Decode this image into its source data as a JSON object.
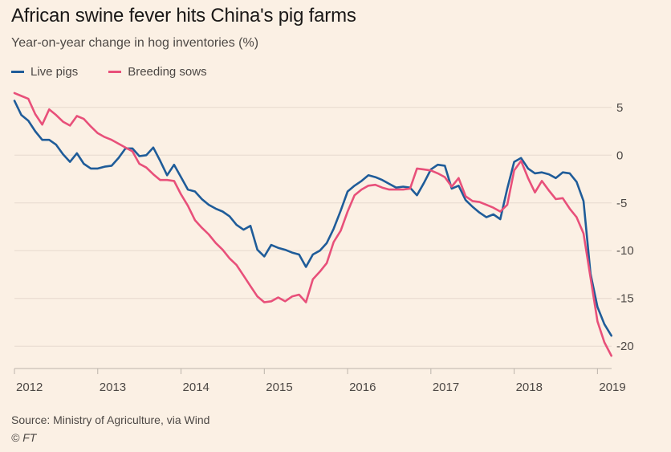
{
  "chart_data": {
    "type": "line",
    "title": "African swine fever hits China's pig farms",
    "subtitle": "Year-on-year change in hog inventories (%)",
    "xlabel": "",
    "ylabel": "",
    "x": [
      2012.0,
      2012.083,
      2012.167,
      2012.25,
      2012.333,
      2012.417,
      2012.5,
      2012.583,
      2012.667,
      2012.75,
      2012.833,
      2012.917,
      2013.0,
      2013.083,
      2013.167,
      2013.25,
      2013.333,
      2013.417,
      2013.5,
      2013.583,
      2013.667,
      2013.75,
      2013.833,
      2013.917,
      2014.0,
      2014.083,
      2014.167,
      2014.25,
      2014.333,
      2014.417,
      2014.5,
      2014.583,
      2014.667,
      2014.75,
      2014.833,
      2014.917,
      2015.0,
      2015.083,
      2015.167,
      2015.25,
      2015.333,
      2015.417,
      2015.5,
      2015.583,
      2015.667,
      2015.75,
      2015.833,
      2015.917,
      2016.0,
      2016.083,
      2016.167,
      2016.25,
      2016.333,
      2016.417,
      2016.5,
      2016.583,
      2016.667,
      2016.75,
      2016.833,
      2016.917,
      2017.0,
      2017.083,
      2017.167,
      2017.25,
      2017.333,
      2017.417,
      2017.5,
      2017.583,
      2017.667,
      2017.75,
      2017.833,
      2017.917,
      2018.0,
      2018.083,
      2018.167,
      2018.25,
      2018.333,
      2018.417,
      2018.5,
      2018.583,
      2018.667,
      2018.75,
      2018.833,
      2018.917,
      2019.0,
      2019.083,
      2019.167
    ],
    "series": [
      {
        "name": "Live pigs",
        "color": "#1f5c99",
        "values": [
          5.7,
          4.2,
          3.6,
          2.5,
          1.6,
          1.6,
          1.1,
          0.1,
          -0.7,
          0.2,
          -0.9,
          -1.4,
          -1.4,
          -1.2,
          -1.1,
          -0.3,
          0.7,
          0.7,
          -0.1,
          0.0,
          0.8,
          -0.6,
          -2.1,
          -1.0,
          -2.3,
          -3.6,
          -3.8,
          -4.6,
          -5.2,
          -5.6,
          -5.9,
          -6.4,
          -7.3,
          -7.8,
          -7.4,
          -9.9,
          -10.6,
          -9.4,
          -9.7,
          -9.9,
          -10.2,
          -10.4,
          -11.7,
          -10.4,
          -10.0,
          -9.2,
          -7.7,
          -5.8,
          -3.8,
          -3.2,
          -2.7,
          -2.1,
          -2.3,
          -2.6,
          -3.0,
          -3.4,
          -3.3,
          -3.4,
          -4.2,
          -2.9,
          -1.5,
          -1.0,
          -1.1,
          -3.5,
          -3.2,
          -4.7,
          -5.4,
          -6.0,
          -6.5,
          -6.2,
          -6.7,
          -3.5,
          -0.7,
          -0.3,
          -1.4,
          -1.9,
          -1.8,
          -2.0,
          -2.4,
          -1.8,
          -1.9,
          -2.8,
          -4.8,
          -12.4,
          -15.9,
          -17.7,
          -18.9
        ]
      },
      {
        "name": "Breeding sows",
        "color": "#e8507a",
        "values": [
          6.5,
          6.2,
          5.9,
          4.3,
          3.2,
          4.8,
          4.2,
          3.5,
          3.1,
          4.1,
          3.8,
          3.0,
          2.3,
          1.9,
          1.6,
          1.2,
          0.8,
          0.4,
          -0.9,
          -1.3,
          -2.0,
          -2.6,
          -2.6,
          -2.7,
          -4.1,
          -5.3,
          -6.8,
          -7.6,
          -8.3,
          -9.2,
          -9.9,
          -10.8,
          -11.5,
          -12.6,
          -13.7,
          -14.8,
          -15.4,
          -15.3,
          -14.9,
          -15.3,
          -14.8,
          -14.6,
          -15.4,
          -13.0,
          -12.2,
          -11.3,
          -9.1,
          -7.9,
          -5.9,
          -4.2,
          -3.6,
          -3.2,
          -3.1,
          -3.4,
          -3.6,
          -3.6,
          -3.6,
          -3.5,
          -1.4,
          -1.5,
          -1.6,
          -1.9,
          -2.3,
          -3.3,
          -2.4,
          -4.3,
          -4.8,
          -4.9,
          -5.2,
          -5.5,
          -5.9,
          -5.2,
          -1.6,
          -0.6,
          -2.4,
          -3.9,
          -2.7,
          -3.7,
          -4.6,
          -4.5,
          -5.6,
          -6.5,
          -8.2,
          -12.8,
          -17.4,
          -19.6,
          -21.0
        ]
      }
    ],
    "ylim": [
      -22,
      7
    ],
    "y_ticks": [
      5,
      0,
      -5,
      -10,
      -15,
      -20
    ],
    "y_tick_labels": [
      "5",
      "0",
      "-5",
      "-10",
      "-15",
      "-20"
    ],
    "x_ticks": [
      2012,
      2013,
      2014,
      2015,
      2016,
      2017,
      2018,
      2019
    ],
    "x_tick_labels": [
      "2012",
      "2013",
      "2014",
      "2015",
      "2016",
      "2017",
      "2018",
      "2019"
    ],
    "xlim": [
      2012,
      2019.17
    ],
    "grid": true,
    "legend_position": "top-left",
    "axis_color": "#bcb4ab",
    "grid_color": "#e6d9ce"
  },
  "source": "Source: Ministry of Agriculture, via Wind",
  "credit": "© FT",
  "legend": [
    {
      "label": "Live pigs",
      "color": "#1f5c99"
    },
    {
      "label": "Breeding sows",
      "color": "#e8507a"
    }
  ]
}
